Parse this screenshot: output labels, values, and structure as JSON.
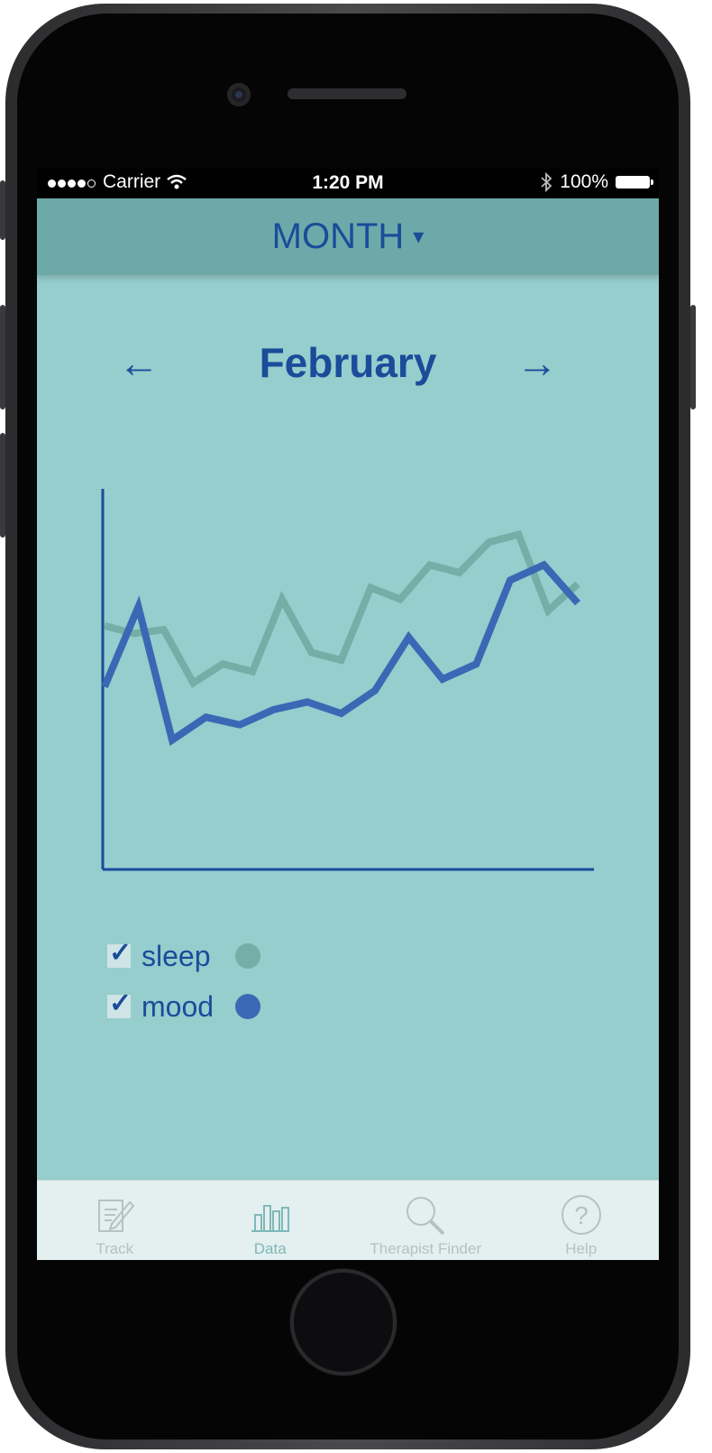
{
  "status_bar": {
    "carrier": "Carrier",
    "time": "1:20 PM",
    "battery": "100%"
  },
  "header": {
    "view_label": "MONTH",
    "caret": "▾"
  },
  "period": {
    "prev_arrow": "←",
    "title": "February",
    "next_arrow": "→"
  },
  "chart_data": {
    "type": "line",
    "series": [
      {
        "name": "sleep",
        "color": "#74aea6",
        "values": [
          6.4,
          6.2,
          6.3,
          4.9,
          5.4,
          5.2,
          7.1,
          5.7,
          5.5,
          7.4,
          7.1,
          8.0,
          7.8,
          8.6,
          8.8,
          6.8,
          7.5
        ]
      },
      {
        "name": "mood",
        "color": "#3a68b4",
        "values": [
          4.8,
          6.9,
          3.4,
          4.0,
          3.8,
          4.2,
          4.4,
          4.1,
          4.7,
          6.1,
          5.0,
          5.4,
          7.6,
          8.0,
          7.0
        ]
      }
    ],
    "ylim": [
      0,
      10
    ],
    "axes": "left-and-bottom",
    "grid": false
  },
  "legend": {
    "items": [
      {
        "label": "sleep",
        "checked": true,
        "color": "#74aea6"
      },
      {
        "label": "mood",
        "checked": true,
        "color": "#3a68b4"
      }
    ],
    "checkmark": "✓"
  },
  "tabbar": {
    "tabs": [
      {
        "label": "Track",
        "icon": "pencil-note-icon",
        "active": false
      },
      {
        "label": "Data",
        "icon": "bar-chart-icon",
        "active": true
      },
      {
        "label": "Therapist Finder",
        "icon": "magnifier-icon",
        "active": false
      },
      {
        "label": "Help",
        "icon": "question-circle-icon",
        "active": false
      }
    ]
  }
}
